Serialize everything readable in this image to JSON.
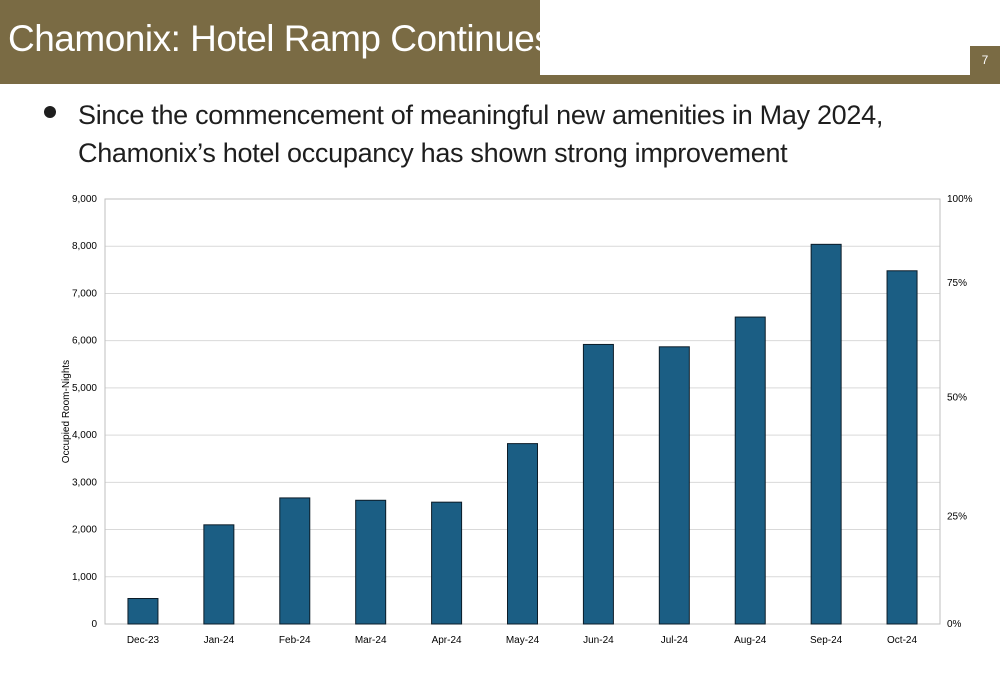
{
  "slide": {
    "title": "Chamonix: Hotel Ramp Continues",
    "page_number": "7",
    "bullet": "Since the commencement of meaningful new amenities in May 2024, Chamonix’s hotel occupancy has shown strong improvement"
  },
  "colors": {
    "header": "#7a6b44",
    "bar": "#1b5e84",
    "bar_outline": "#0c1c28",
    "grid": "#d9d9d9"
  },
  "chart_data": {
    "type": "bar",
    "categories": [
      "Dec-23",
      "Jan-24",
      "Feb-24",
      "Mar-24",
      "Apr-24",
      "May-24",
      "Jun-24",
      "Jul-24",
      "Aug-24",
      "Sep-24",
      "Oct-24"
    ],
    "values": [
      540,
      2100,
      2670,
      2620,
      2580,
      3820,
      5920,
      5870,
      6500,
      8040,
      7480
    ],
    "title": "",
    "xlabel": "",
    "ylabel": "Occupied Room-Nights",
    "ylim": [
      0,
      9000
    ],
    "yticks": [
      0,
      1000,
      2000,
      3000,
      4000,
      5000,
      6000,
      7000,
      8000,
      9000
    ],
    "ytick_labels": [
      "0",
      "1,000",
      "2,000",
      "3,000",
      "4,000",
      "5,000",
      "6,000",
      "7,000",
      "8,000",
      "9,000"
    ],
    "y2_ticks": [
      0,
      25,
      50,
      75,
      100
    ],
    "y2_tick_labels": [
      "0%",
      "25%",
      "50%",
      "75%",
      "100%"
    ],
    "y2_positions": [
      0,
      2280,
      4800,
      7220,
      9000
    ],
    "grid": true
  }
}
